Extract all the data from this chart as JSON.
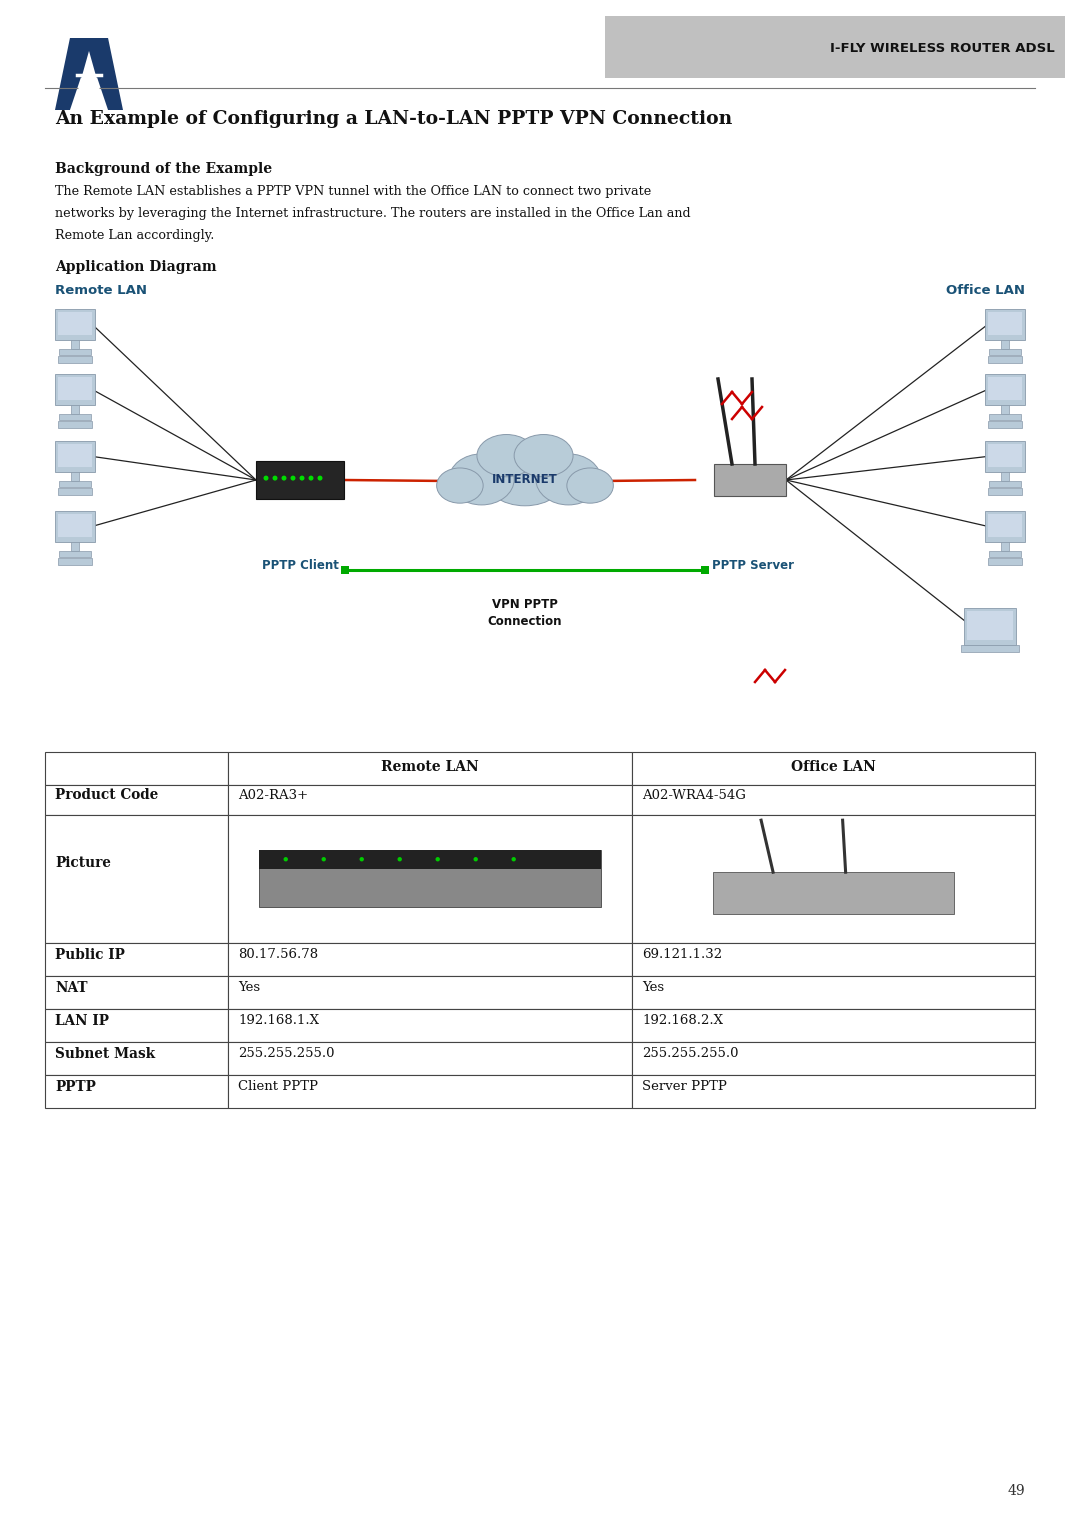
{
  "page_bg": "#ffffff",
  "logo_color": "#1a3a6b",
  "header_bg": "#c0c0c0",
  "header_text": "I-FLY WIRELESS ROUTER ADSL",
  "header_text_color": "#111111",
  "title": "An Example of Configuring a LAN-to-LAN PPTP VPN Connection",
  "section1_heading": "Background of the Example",
  "section1_body": "The Remote LAN establishes a PPTP VPN tunnel with the Office LAN to connect two private networks by leveraging the Internet infrastructure. The routers are installed in the Office Lan and Remote Lan accordingly.",
  "section2_heading": "Application Diagram",
  "remote_lan_label": "Remote LAN",
  "office_lan_label": "Office LAN",
  "remote_lan_color": "#1a5276",
  "office_lan_color": "#1a5276",
  "pptp_client_label": "PPTP Client",
  "pptp_server_label": "PPTP Server",
  "vpn_label": "VPN PPTP\nConnection",
  "internet_label": "INTERNET",
  "table_headers": [
    "",
    "Remote LAN",
    "Office LAN"
  ],
  "table_rows": [
    [
      "Product Code",
      "A02-RA3+",
      "A02-WRA4-54G"
    ],
    [
      "Picture",
      "",
      ""
    ],
    [
      "Public IP",
      "80.17.56.78",
      "69.121.1.32"
    ],
    [
      "NAT",
      "Yes",
      "Yes"
    ],
    [
      "LAN IP",
      "192.168.1.X",
      "192.168.2.X"
    ],
    [
      "Subnet Mask",
      "255.255.255.0",
      "255.255.255.0"
    ],
    [
      "PPTP",
      "Client PPTP",
      "Server PPTP"
    ]
  ],
  "table_border_color": "#444444",
  "bold_rows": [
    "Product Code",
    "Picture",
    "Public IP",
    "NAT",
    "LAN IP",
    "Subnet Mask",
    "PPTP"
  ],
  "page_number": "49",
  "cloud_color": "#b8ccd8",
  "vpn_line_color": "#00aa00",
  "internet_line_color": "#cc2200",
  "pc_line_color": "#222222"
}
